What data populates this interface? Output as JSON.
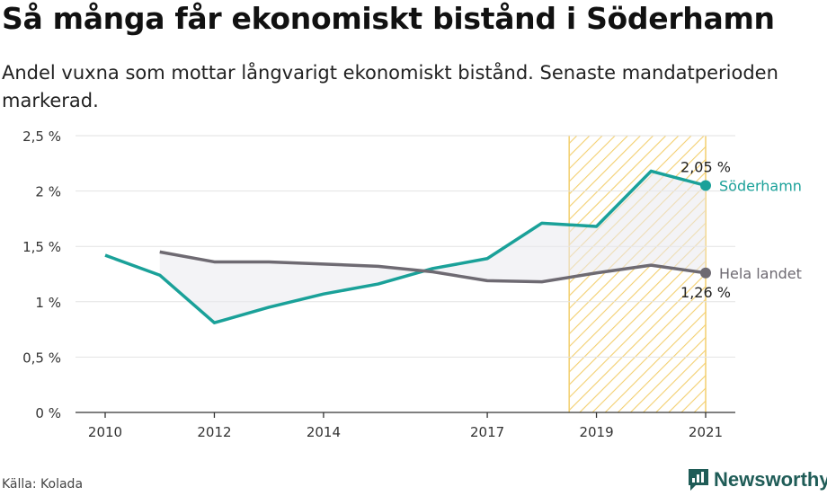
{
  "title": "Så många får ekonomiskt bistånd i Söderhamn",
  "subtitle": "Andel vuxna som mottar långvarigt ekonomiskt bistånd. Senaste mandatperioden markerad.",
  "source": "Källa: Kolada",
  "brand": "Newsworthy",
  "colors": {
    "soderhamn": "#1aa199",
    "hela_landet": "#6e6a72",
    "highlight": "#f3cf6f",
    "gap_fill": "#e9e9ee",
    "brand": "#1f5c57"
  },
  "chart_data": {
    "type": "line",
    "title": "Så många får ekonomiskt bistånd i Söderhamn",
    "xlabel": "",
    "ylabel": "",
    "xlim": [
      2010,
      2021
    ],
    "ylim": [
      0,
      2.5
    ],
    "x_ticks": [
      2010,
      2012,
      2014,
      2017,
      2019,
      2021
    ],
    "y_ticks": [
      0,
      0.5,
      1,
      1.5,
      2,
      2.5
    ],
    "y_tick_labels": [
      "0 %",
      "0,5 %",
      "1 %",
      "1,5 %",
      "2 %",
      "2,5 %"
    ],
    "grid": "horizontal",
    "highlight_period": [
      2018.5,
      2021
    ],
    "series": [
      {
        "name": "Söderhamn",
        "x": [
          2010,
          2011,
          2012,
          2013,
          2014,
          2015,
          2016,
          2017,
          2018,
          2019,
          2020,
          2021
        ],
        "values": [
          1.42,
          1.24,
          0.81,
          0.95,
          1.07,
          1.16,
          1.3,
          1.39,
          1.71,
          1.68,
          2.18,
          2.05
        ],
        "end_label": "2,05 %"
      },
      {
        "name": "Hela landet",
        "x": [
          2011,
          2012,
          2013,
          2014,
          2015,
          2016,
          2017,
          2018,
          2019,
          2020,
          2021
        ],
        "values": [
          1.45,
          1.36,
          1.36,
          1.34,
          1.32,
          1.27,
          1.19,
          1.18,
          1.26,
          1.33,
          1.26
        ],
        "end_label": "1,26 %"
      }
    ]
  }
}
